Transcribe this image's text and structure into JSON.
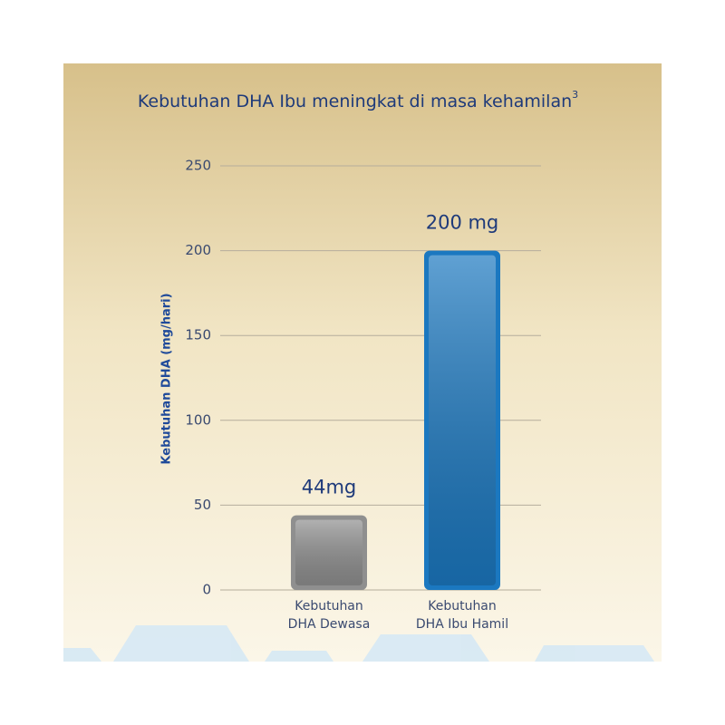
{
  "chart_data": {
    "type": "bar",
    "title": "Kebutuhan DHA Ibu meningkat di masa kehamilan",
    "title_superscript": "3",
    "y_label": "Kebutuhan DHA (mg/hari)",
    "categories": [
      "Kebutuhan\nDHA Dewasa",
      "Kebutuhan\nDHA Ibu Hamil"
    ],
    "values": [
      44,
      200
    ],
    "value_labels": [
      "44mg",
      "200 mg"
    ],
    "colors": [
      "#8f8f8f",
      "#1b78c0"
    ],
    "ylim": [
      0,
      250
    ],
    "yticks": [
      0,
      50,
      100,
      150,
      200,
      250
    ],
    "grid": true
  }
}
